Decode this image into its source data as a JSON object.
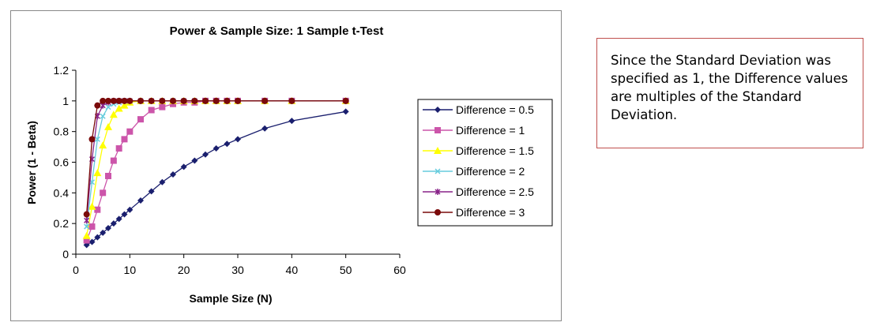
{
  "chart_data": {
    "type": "line",
    "title": "Power & Sample Size: 1 Sample t-Test",
    "xlabel": "Sample Size (N)",
    "ylabel": "Power (1 - Beta)",
    "xlim": [
      0,
      60
    ],
    "ylim": [
      0,
      1.2
    ],
    "xticks": [
      0,
      10,
      20,
      30,
      40,
      50,
      60
    ],
    "yticks": [
      0,
      0.2,
      0.4,
      0.6,
      0.8,
      1,
      1.2
    ],
    "grid": false,
    "legend_position": "right",
    "x": [
      2,
      3,
      4,
      5,
      6,
      7,
      8,
      9,
      10,
      12,
      14,
      16,
      18,
      20,
      22,
      24,
      26,
      28,
      30,
      35,
      40,
      50
    ],
    "series": [
      {
        "name": "Difference = 0.5",
        "color": "#1a1f6e",
        "marker": "diamond",
        "values": [
          0.06,
          0.08,
          0.11,
          0.14,
          0.17,
          0.2,
          0.23,
          0.26,
          0.29,
          0.35,
          0.41,
          0.47,
          0.52,
          0.57,
          0.61,
          0.65,
          0.69,
          0.72,
          0.75,
          0.82,
          0.87,
          0.93
        ]
      },
      {
        "name": "Difference = 1",
        "color": "#cc55aa",
        "marker": "square",
        "values": [
          0.09,
          0.18,
          0.29,
          0.4,
          0.51,
          0.61,
          0.69,
          0.75,
          0.8,
          0.88,
          0.94,
          0.96,
          0.98,
          0.99,
          0.99,
          1,
          1,
          1,
          1,
          1,
          1,
          1
        ]
      },
      {
        "name": "Difference = 1.5",
        "color": "#ffff00",
        "marker": "triangle",
        "values": [
          0.12,
          0.31,
          0.53,
          0.71,
          0.83,
          0.91,
          0.95,
          0.97,
          0.99,
          1,
          1,
          1,
          1,
          1,
          1,
          1,
          1,
          1,
          1,
          1,
          1,
          1
        ]
      },
      {
        "name": "Difference = 2",
        "color": "#66ccdd",
        "marker": "x",
        "values": [
          0.18,
          0.47,
          0.75,
          0.9,
          0.96,
          0.98,
          0.99,
          1,
          1,
          1,
          1,
          1,
          1,
          1,
          1,
          1,
          1,
          1,
          1,
          1,
          1,
          1
        ]
      },
      {
        "name": "Difference = 2.5",
        "color": "#882288",
        "marker": "star",
        "values": [
          0.22,
          0.62,
          0.9,
          0.97,
          0.99,
          1,
          1,
          1,
          1,
          1,
          1,
          1,
          1,
          1,
          1,
          1,
          1,
          1,
          1,
          1,
          1,
          1
        ]
      },
      {
        "name": "Difference = 3",
        "color": "#7a0a0a",
        "marker": "circle",
        "values": [
          0.26,
          0.75,
          0.97,
          1,
          1,
          1,
          1,
          1,
          1,
          1,
          1,
          1,
          1,
          1,
          1,
          1,
          1,
          1,
          1,
          1,
          1,
          1
        ]
      }
    ]
  },
  "note": {
    "text": "Since the Standard Deviation was specified as 1, the Difference values are multiples of the Standard Deviation.",
    "border_color": "#c0504d"
  }
}
